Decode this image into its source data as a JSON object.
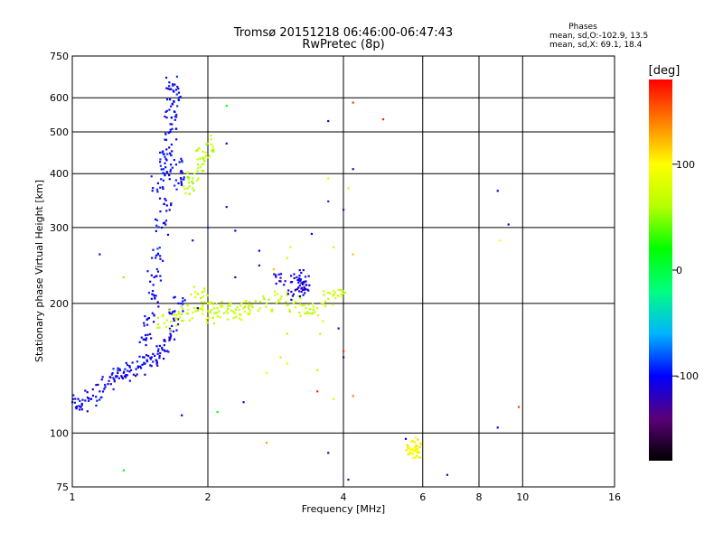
{
  "chart_data": {
    "type": "scatter",
    "title": "Tromsø 20151218 06:46:00-06:47:43",
    "subtitle": "RwPretec (8p)",
    "xlabel": "Frequency [MHz]",
    "ylabel": "Stationary phase Virtual Height [km]",
    "x_scale": "log",
    "y_scale": "log",
    "xlim": [
      1,
      16
    ],
    "ylim": [
      75,
      750
    ],
    "x_ticks": [
      1,
      2,
      4,
      6,
      8,
      10,
      16
    ],
    "x_tick_labels": [
      "1",
      "2",
      "4",
      "6",
      "8",
      "10",
      "16"
    ],
    "y_ticks": [
      75,
      100,
      200,
      300,
      400,
      500,
      600,
      750
    ],
    "y_tick_labels": [
      "75",
      "100",
      "200",
      "300",
      "400",
      "500",
      "600",
      "750"
    ],
    "grid": true,
    "stats": {
      "heading": "Phases",
      "line_o": "mean, sd,O:-102.9, 13.5",
      "line_x": "mean, sd,X:  69.1, 18.4"
    },
    "colorbar": {
      "label": "[deg]",
      "min": -180,
      "max": 180,
      "ticks": [
        100,
        0,
        -100
      ],
      "tick_labels": [
        "100",
        "0",
        "-100"
      ],
      "colors": [
        "#000000",
        "#5a0078",
        "#0000ff",
        "#00b4ff",
        "#00ff80",
        "#00ff00",
        "#b4ff00",
        "#ffff00",
        "#ff8000",
        "#ff0000"
      ]
    },
    "clusters": [
      {
        "name": "o-trace-low",
        "phase": -105,
        "points": [
          [
            1.0,
            118
          ],
          [
            1.05,
            117
          ],
          [
            1.1,
            120
          ],
          [
            1.15,
            125
          ],
          [
            1.2,
            130
          ],
          [
            1.25,
            135
          ],
          [
            1.3,
            138
          ],
          [
            1.35,
            140
          ],
          [
            1.4,
            142
          ],
          [
            1.45,
            145
          ],
          [
            1.5,
            150
          ],
          [
            1.55,
            155
          ],
          [
            1.6,
            160
          ],
          [
            1.65,
            170
          ],
          [
            1.7,
            185
          ],
          [
            1.72,
            200
          ]
        ]
      },
      {
        "name": "o-trace-rise",
        "phase": -100,
        "points": [
          [
            1.45,
            165
          ],
          [
            1.48,
            185
          ],
          [
            1.5,
            205
          ],
          [
            1.52,
            230
          ],
          [
            1.55,
            260
          ],
          [
            1.58,
            300
          ],
          [
            1.6,
            340
          ]
        ]
      },
      {
        "name": "o-trace-top",
        "phase": -100,
        "points": [
          [
            1.55,
            380
          ],
          [
            1.6,
            400
          ],
          [
            1.62,
            430
          ],
          [
            1.64,
            460
          ],
          [
            1.65,
            500
          ],
          [
            1.66,
            540
          ],
          [
            1.67,
            580
          ],
          [
            1.68,
            620
          ],
          [
            1.67,
            645
          ],
          [
            1.7,
            420
          ],
          [
            1.72,
            380
          ]
        ]
      },
      {
        "name": "x-trace",
        "phase": 70,
        "points": [
          [
            1.6,
            180
          ],
          [
            1.7,
            185
          ],
          [
            1.8,
            190
          ],
          [
            1.9,
            195
          ],
          [
            2.0,
            200
          ],
          [
            2.1,
            195
          ],
          [
            2.2,
            192
          ],
          [
            2.3,
            190
          ],
          [
            2.4,
            195
          ],
          [
            2.5,
            198
          ],
          [
            2.7,
            200
          ],
          [
            2.9,
            205
          ],
          [
            3.1,
            200
          ],
          [
            3.3,
            195
          ],
          [
            3.5,
            195
          ],
          [
            3.7,
            205
          ],
          [
            3.9,
            215
          ],
          [
            1.9,
            210
          ],
          [
            2.05,
            185
          ]
        ]
      },
      {
        "name": "x-trace-upper",
        "phase": 60,
        "points": [
          [
            1.8,
            370
          ],
          [
            1.85,
            390
          ],
          [
            1.9,
            420
          ],
          [
            1.95,
            450
          ],
          [
            2.0,
            470
          ]
        ]
      },
      {
        "name": "o-mid-cluster",
        "phase": -110,
        "points": [
          [
            3.1,
            210
          ],
          [
            3.2,
            220
          ],
          [
            3.3,
            225
          ],
          [
            3.25,
            215
          ],
          [
            3.15,
            230
          ],
          [
            2.9,
            225
          ]
        ]
      },
      {
        "name": "scatter-100",
        "phase": 100,
        "points": [
          [
            5.6,
            93
          ],
          [
            5.7,
            92
          ],
          [
            5.8,
            94
          ],
          [
            5.75,
            91
          ]
        ]
      }
    ],
    "isolated_points": [
      {
        "f": 1.3,
        "h": 82,
        "phase": 10
      },
      {
        "f": 2.2,
        "h": 575,
        "phase": 20
      },
      {
        "f": 2.2,
        "h": 470,
        "phase": -120
      },
      {
        "f": 2.2,
        "h": 335,
        "phase": -130
      },
      {
        "f": 2.3,
        "h": 295,
        "phase": -100
      },
      {
        "f": 3.7,
        "h": 530,
        "phase": -110
      },
      {
        "f": 4.2,
        "h": 585,
        "phase": 160
      },
      {
        "f": 4.9,
        "h": 535,
        "phase": 170
      },
      {
        "f": 4.2,
        "h": 410,
        "phase": -120
      },
      {
        "f": 3.7,
        "h": 345,
        "phase": -90
      },
      {
        "f": 4.0,
        "h": 330,
        "phase": -130
      },
      {
        "f": 3.7,
        "h": 390,
        "phase": 80
      },
      {
        "f": 4.1,
        "h": 370,
        "phase": 70
      },
      {
        "f": 8.8,
        "h": 365,
        "phase": -100
      },
      {
        "f": 9.3,
        "h": 305,
        "phase": -110
      },
      {
        "f": 8.9,
        "h": 280,
        "phase": 100
      },
      {
        "f": 4.2,
        "h": 260,
        "phase": 120
      },
      {
        "f": 9.8,
        "h": 115,
        "phase": 160
      },
      {
        "f": 8.8,
        "h": 103,
        "phase": -100
      },
      {
        "f": 2.7,
        "h": 95,
        "phase": 130
      },
      {
        "f": 3.7,
        "h": 90,
        "phase": -120
      },
      {
        "f": 4.1,
        "h": 78,
        "phase": -130
      },
      {
        "f": 6.8,
        "h": 80,
        "phase": -120
      },
      {
        "f": 5.5,
        "h": 97,
        "phase": -100
      },
      {
        "f": 1.75,
        "h": 110,
        "phase": -100
      },
      {
        "f": 2.4,
        "h": 118,
        "phase": -110
      },
      {
        "f": 2.1,
        "h": 112,
        "phase": 20
      },
      {
        "f": 3.8,
        "h": 120,
        "phase": 80
      },
      {
        "f": 4.2,
        "h": 122,
        "phase": 140
      },
      {
        "f": 3.5,
        "h": 125,
        "phase": 170
      },
      {
        "f": 2.7,
        "h": 138,
        "phase": 90
      },
      {
        "f": 3.5,
        "h": 140,
        "phase": 60
      },
      {
        "f": 3.0,
        "h": 145,
        "phase": 90
      },
      {
        "f": 2.9,
        "h": 150,
        "phase": 70
      },
      {
        "f": 4.0,
        "h": 155,
        "phase": 170
      },
      {
        "f": 4.0,
        "h": 150,
        "phase": -120
      },
      {
        "f": 2.6,
        "h": 265,
        "phase": -100
      },
      {
        "f": 2.6,
        "h": 245,
        "phase": -130
      },
      {
        "f": 2.8,
        "h": 240,
        "phase": 120
      },
      {
        "f": 3.0,
        "h": 255,
        "phase": 70
      },
      {
        "f": 3.05,
        "h": 270,
        "phase": 80
      },
      {
        "f": 3.4,
        "h": 290,
        "phase": -100
      },
      {
        "f": 3.8,
        "h": 270,
        "phase": 110
      },
      {
        "f": 2.3,
        "h": 230,
        "phase": -120
      },
      {
        "f": 1.9,
        "h": 195,
        "phase": -120
      },
      {
        "f": 1.3,
        "h": 230,
        "phase": 50
      },
      {
        "f": 1.15,
        "h": 260,
        "phase": -110
      },
      {
        "f": 3.9,
        "h": 175,
        "phase": -120
      },
      {
        "f": 3.6,
        "h": 182,
        "phase": 80
      },
      {
        "f": 3.55,
        "h": 170,
        "phase": 60
      },
      {
        "f": 3.0,
        "h": 170,
        "phase": 60
      },
      {
        "f": 2.0,
        "h": 300,
        "phase": -90
      },
      {
        "f": 1.85,
        "h": 280,
        "phase": -100
      }
    ]
  }
}
